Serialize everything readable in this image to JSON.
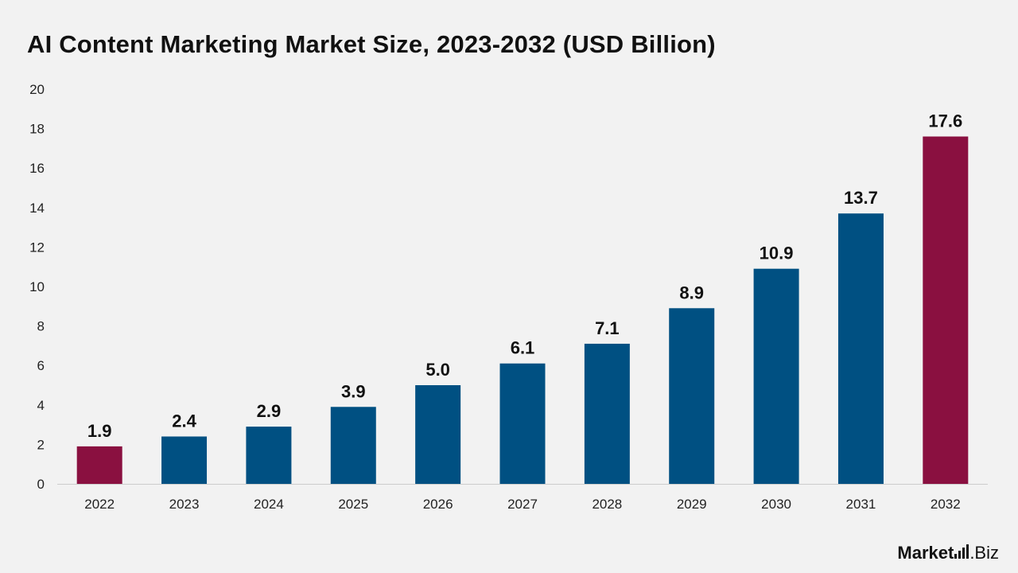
{
  "chart_data": {
    "type": "bar",
    "title": "AI Content Marketing Market Size, 2023-2032 (USD Billion)",
    "xlabel": "",
    "ylabel": "",
    "categories": [
      "2022",
      "2023",
      "2024",
      "2025",
      "2026",
      "2027",
      "2028",
      "2029",
      "2030",
      "2031",
      "2032"
    ],
    "values": [
      1.9,
      2.4,
      2.9,
      3.9,
      5.0,
      6.1,
      7.1,
      8.9,
      10.9,
      13.7,
      17.6
    ],
    "value_labels": [
      "1.9",
      "2.4",
      "2.9",
      "3.9",
      "5.0",
      "6.1",
      "7.1",
      "8.9",
      "10.9",
      "13.7",
      "17.6"
    ],
    "highlight_categories": [
      "2022",
      "2032"
    ],
    "ylim": [
      0,
      20
    ],
    "yticks": [
      0,
      2,
      4,
      6,
      8,
      10,
      12,
      14,
      16,
      18,
      20
    ],
    "grid": false,
    "legend": "none",
    "colors": {
      "bar": "#005082",
      "highlight": "#8a1040",
      "axis": "#cccccc"
    }
  },
  "brand": {
    "name_main": "Market",
    "name_suffix": ".Biz",
    "icon": "bar-chart-icon"
  }
}
